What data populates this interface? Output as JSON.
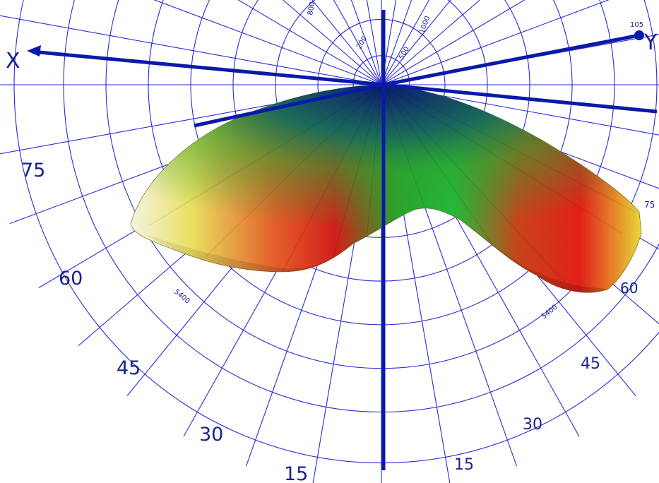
{
  "axes": {
    "x_label": "X",
    "y_label": "Y",
    "y_end_value": "105"
  },
  "angle_labels": {
    "left": [
      "75",
      "60",
      "45",
      "30",
      "15"
    ],
    "right": [
      "75",
      "60",
      "45",
      "30",
      "15"
    ]
  },
  "radial_labels": {
    "upper": [
      "200",
      "500",
      "800",
      "1000"
    ],
    "lower_left": "5400",
    "lower_right": "5400"
  },
  "colors": {
    "grid": "#2a2ad8",
    "axis": "#0a1aa8",
    "label": "#1a2290"
  }
}
